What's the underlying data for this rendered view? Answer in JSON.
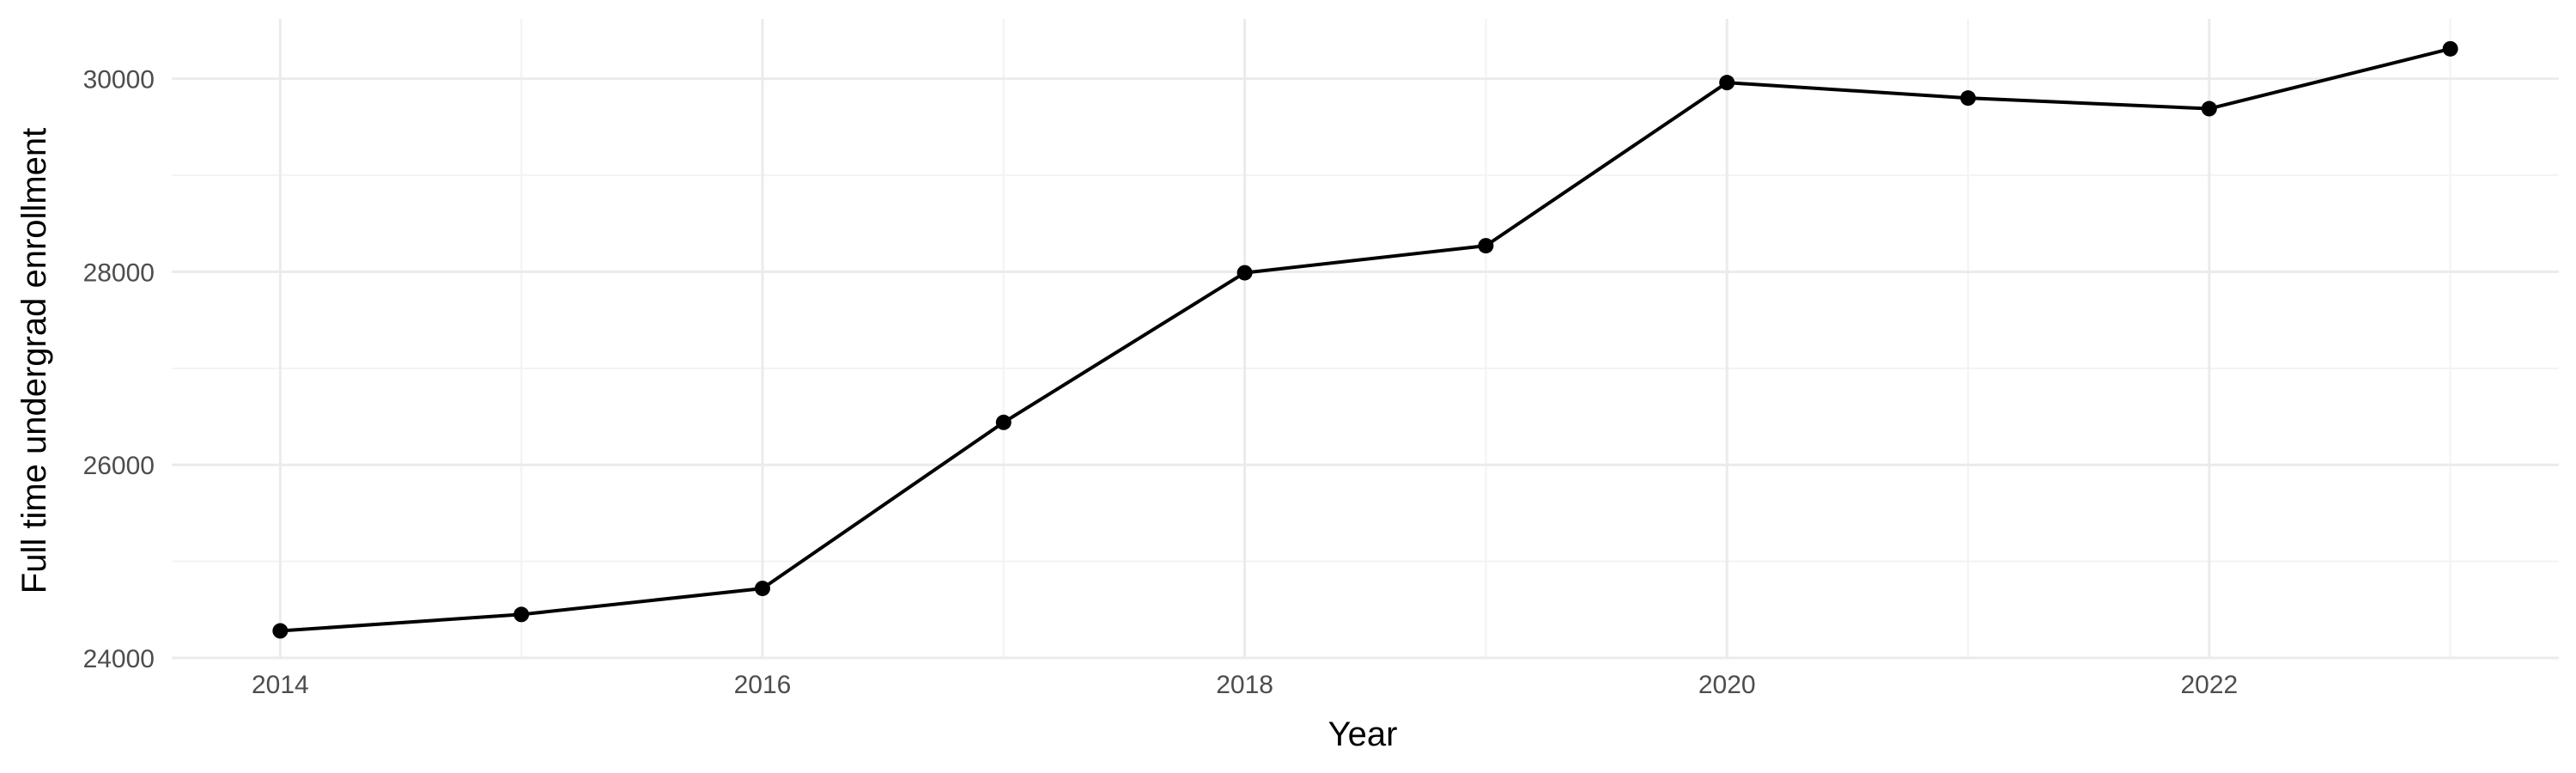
{
  "chart_data": {
    "type": "line",
    "title": "",
    "xlabel": "Year",
    "ylabel": "Full time undergrad enrollment",
    "x": [
      2014,
      2015,
      2016,
      2017,
      2018,
      2019,
      2020,
      2021,
      2022,
      2023
    ],
    "series": [
      {
        "values": [
          24280,
          24450,
          24720,
          26440,
          27990,
          28270,
          29960,
          29800,
          29690,
          30310
        ],
        "color": "#000000"
      }
    ],
    "x_ticks": [
      2014,
      2016,
      2018,
      2020,
      2022
    ],
    "x_tick_labels": [
      "2014",
      "2016",
      "2018",
      "2020",
      "2022"
    ],
    "y_ticks": [
      24000,
      26000,
      28000,
      30000
    ],
    "y_tick_labels": [
      "24000",
      "26000",
      "28000",
      "30000"
    ],
    "xlim": [
      2013.55,
      2023.45
    ],
    "ylim": [
      24000,
      30620
    ],
    "grid": true,
    "legend": "none",
    "colors": {
      "grid_major": "#ebebeb",
      "grid_minor": "#f3f3f3",
      "tick_text": "#4d4d4d",
      "line": "#000000"
    }
  }
}
